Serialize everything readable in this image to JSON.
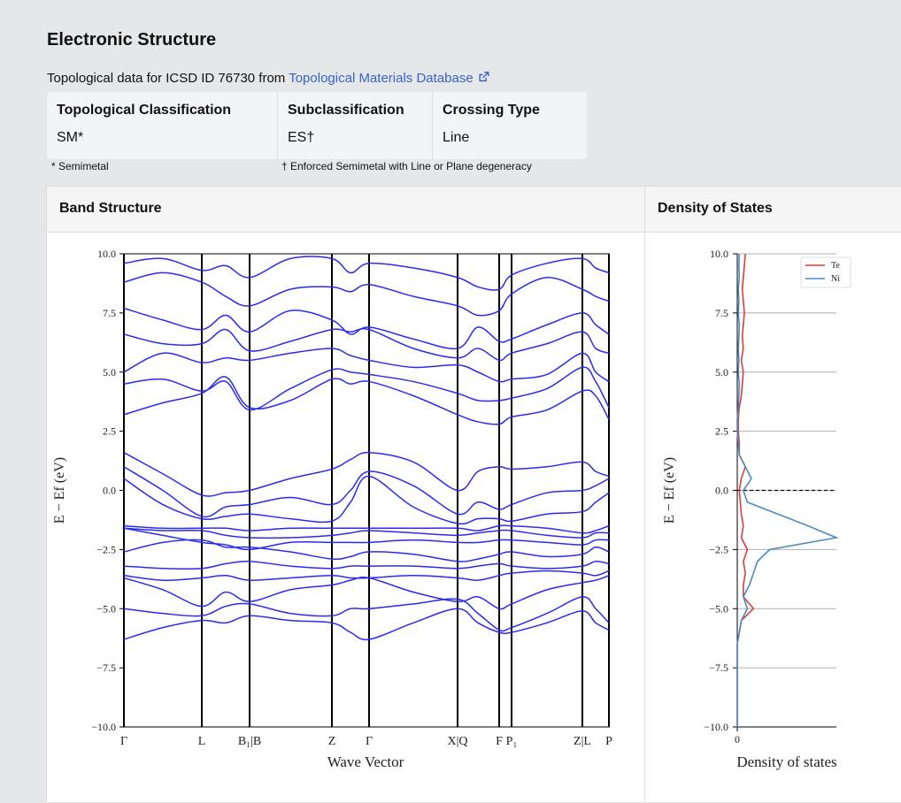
{
  "header": {
    "title": "Electronic Structure",
    "source_text": "Topological data for ICSD ID 76730 from",
    "source_link": "Topological Materials Database"
  },
  "table": {
    "headers": [
      "Topological Classification",
      "Subclassification",
      "Crossing Type"
    ],
    "values": [
      "SM*",
      "ES†",
      "Line"
    ]
  },
  "footnotes": [
    "* Semimetal",
    "† Enforced Semimetal with Line or Plane degeneracy"
  ],
  "panels": [
    "Band Structure",
    "Density of States"
  ],
  "chart_data": [
    {
      "type": "line",
      "xlabel": "Wave Vector",
      "ylabel": "E − Ef (eV)",
      "color": "#2a2af0",
      "x": [
        0,
        0.44,
        0.88,
        1.15,
        1.42,
        1.88,
        2.35,
        2.56,
        2.77,
        3.27,
        3.77,
        4.0,
        4.24,
        4.38,
        4.78,
        5.18,
        5.33,
        5.48
      ],
      "xlim": [
        0,
        5.48
      ],
      "xticks": [
        {
          "value": 0,
          "label": "Γ"
        },
        {
          "value": 0.88,
          "label": "L"
        },
        {
          "value": 1.42,
          "label": "B₁|B"
        },
        {
          "value": 2.35,
          "label": "Z"
        },
        {
          "value": 2.77,
          "label": "Γ"
        },
        {
          "value": 3.77,
          "label": "X|Q"
        },
        {
          "value": 4.24,
          "label": "F"
        },
        {
          "value": 4.38,
          "label": "P₁"
        },
        {
          "value": 5.18,
          "label": "Z|L"
        },
        {
          "value": 5.48,
          "label": "P"
        }
      ],
      "ylim": [
        -10,
        10
      ],
      "yticks": [
        {
          "value": 10,
          "label": "10.0"
        },
        {
          "value": 7.5,
          "label": "7.5"
        },
        {
          "value": 5,
          "label": "5.0"
        },
        {
          "value": 2.5,
          "label": "2.5"
        },
        {
          "value": 0,
          "label": "0.0"
        },
        {
          "value": -2.5,
          "label": "−2.5"
        },
        {
          "value": -5,
          "label": "−5.0"
        },
        {
          "value": -7.5,
          "label": "−7.5"
        },
        {
          "value": -10,
          "label": "−10.0"
        }
      ],
      "bands": [
        [
          -6.3,
          -5.8,
          -5.5,
          -5.6,
          -5.3,
          -5.5,
          -5.6,
          -6.0,
          -6.3,
          -5.6,
          -5.0,
          -5.6,
          -6.0,
          -6.0,
          -5.6,
          -5.1,
          -5.6,
          -5.9
        ],
        [
          -5.0,
          -5.2,
          -5.3,
          -4.9,
          -4.8,
          -5.2,
          -5.3,
          -5.0,
          -5.0,
          -4.8,
          -4.6,
          -5.2,
          -5.9,
          -5.8,
          -5.2,
          -4.5,
          -5.0,
          -5.6
        ],
        [
          -3.7,
          -4.2,
          -4.9,
          -4.3,
          -4.7,
          -4.2,
          -4.0,
          -3.8,
          -3.7,
          -4.3,
          -4.7,
          -4.5,
          -5.0,
          -4.8,
          -4.2,
          -3.9,
          -3.8,
          -3.6
        ],
        [
          -3.6,
          -3.8,
          -3.7,
          -3.6,
          -3.8,
          -3.7,
          -3.6,
          -3.7,
          -3.7,
          -3.6,
          -3.7,
          -3.8,
          -3.6,
          -3.5,
          -3.4,
          -3.5,
          -3.6,
          -3.4
        ],
        [
          -3.2,
          -3.3,
          -3.3,
          -3.1,
          -3.0,
          -3.2,
          -3.3,
          -3.2,
          -3.2,
          -3.2,
          -3.3,
          -3.2,
          -3.1,
          -3.2,
          -3.3,
          -3.2,
          -3.0,
          -3.1
        ],
        [
          -2.6,
          -2.2,
          -2.1,
          -2.4,
          -2.4,
          -2.6,
          -2.9,
          -2.8,
          -2.6,
          -2.7,
          -3.0,
          -2.9,
          -2.7,
          -2.6,
          -2.8,
          -2.7,
          -2.4,
          -2.6
        ],
        [
          -1.6,
          -1.9,
          -2.2,
          -2.3,
          -2.5,
          -2.2,
          -2.2,
          -2.2,
          -2.2,
          -2.1,
          -2.2,
          -2.2,
          -2.1,
          -2.1,
          -2.2,
          -2.3,
          -2.1,
          -2.1
        ],
        [
          -1.6,
          -1.7,
          -1.7,
          -1.9,
          -2.0,
          -2.0,
          -1.9,
          -1.8,
          -1.7,
          -1.8,
          -1.9,
          -1.8,
          -1.7,
          -1.7,
          -1.9,
          -2.0,
          -1.8,
          -1.8
        ],
        [
          -1.5,
          -1.6,
          -1.6,
          -1.6,
          -1.7,
          -1.6,
          -1.6,
          -1.6,
          -1.6,
          -1.6,
          -1.6,
          -1.7,
          -1.5,
          -1.5,
          -1.6,
          -1.8,
          -1.7,
          -1.5
        ],
        [
          0.5,
          -0.6,
          -1.2,
          -1.1,
          -1.0,
          -1.2,
          -1.3,
          -0.5,
          0.6,
          -0.7,
          -1.4,
          -1.2,
          -1.2,
          -1.3,
          -1.0,
          -0.9,
          -0.5,
          -0.1
        ],
        [
          1.0,
          0.0,
          -1.1,
          -0.7,
          -0.6,
          -0.3,
          -0.6,
          0.0,
          0.8,
          0.2,
          -1.0,
          -0.5,
          -0.8,
          -0.6,
          -0.1,
          0.0,
          0.2,
          0.5
        ],
        [
          1.6,
          0.7,
          -0.2,
          -0.1,
          0.0,
          0.5,
          0.9,
          1.3,
          1.6,
          1.2,
          0.0,
          0.8,
          1.0,
          0.9,
          1.0,
          1.2,
          0.8,
          0.6
        ],
        [
          3.2,
          3.7,
          4.1,
          4.8,
          3.5,
          3.8,
          4.7,
          4.5,
          4.6,
          4.0,
          3.2,
          2.9,
          2.8,
          3.1,
          3.4,
          4.2,
          4.0,
          3.0
        ],
        [
          4.5,
          4.7,
          4.2,
          4.6,
          3.4,
          4.3,
          5.1,
          5.0,
          4.9,
          4.6,
          4.1,
          3.8,
          3.8,
          3.9,
          4.3,
          5.2,
          4.6,
          3.5
        ],
        [
          5.0,
          5.8,
          5.4,
          5.6,
          5.5,
          5.8,
          6.0,
          5.7,
          5.5,
          5.2,
          5.3,
          5.0,
          4.6,
          4.7,
          4.9,
          5.8,
          5.0,
          4.6
        ],
        [
          6.6,
          6.2,
          6.2,
          6.8,
          5.9,
          6.3,
          6.8,
          6.7,
          6.8,
          6.0,
          5.6,
          6.0,
          5.5,
          5.8,
          6.2,
          6.7,
          6.0,
          5.8
        ],
        [
          7.7,
          7.2,
          6.8,
          7.4,
          6.7,
          7.6,
          7.2,
          6.6,
          6.9,
          6.4,
          6.0,
          6.9,
          6.3,
          6.4,
          7.0,
          7.5,
          7.0,
          6.6
        ],
        [
          8.8,
          9.2,
          8.8,
          8.2,
          7.8,
          8.5,
          8.6,
          8.4,
          8.7,
          8.2,
          7.8,
          7.4,
          7.6,
          8.3,
          9.0,
          8.5,
          8.2,
          8.0
        ],
        [
          9.6,
          9.8,
          9.3,
          9.5,
          9.0,
          9.8,
          9.8,
          9.2,
          9.6,
          9.4,
          9.0,
          8.6,
          8.5,
          9.1,
          9.6,
          9.8,
          9.4,
          9.2
        ]
      ]
    },
    {
      "type": "line",
      "orientation": "horizontal",
      "xlabel": "Density of states",
      "ylabel": "E − Ef (eV)",
      "xlim": [
        0,
        4.9
      ],
      "xticks": [
        0
      ],
      "ylim": [
        -10,
        10
      ],
      "yticks": [
        {
          "value": 10,
          "label": "10.0"
        },
        {
          "value": 7.5,
          "label": "7.5"
        },
        {
          "value": 5,
          "label": "5.0"
        },
        {
          "value": 2.5,
          "label": "2.5"
        },
        {
          "value": 0,
          "label": "0.0"
        },
        {
          "value": -2.5,
          "label": "−2.5"
        },
        {
          "value": -5,
          "label": "−5.0"
        },
        {
          "value": -7.5,
          "label": "−7.5"
        },
        {
          "value": -10,
          "label": "−10.0"
        }
      ],
      "grid": true,
      "fermi_level": 0,
      "legend": "upper right",
      "energies": [
        -10,
        -9.5,
        -9,
        -8.5,
        -8,
        -7.5,
        -7,
        -6.5,
        -6,
        -5.5,
        -5,
        -4.5,
        -4,
        -3.5,
        -3,
        -2.5,
        -2,
        -1.5,
        -1,
        -0.5,
        0,
        0.5,
        1,
        1.5,
        2,
        2.5,
        3,
        3.5,
        4,
        4.5,
        5,
        5.5,
        6,
        6.5,
        7,
        7.5,
        8,
        8.5,
        9,
        9.5,
        10
      ],
      "series": [
        {
          "name": "Te",
          "color": "#e03c3c",
          "values": [
            0,
            0,
            0,
            0,
            0,
            0,
            0,
            0,
            0.1,
            0.2,
            0.8,
            0.3,
            0.3,
            0.4,
            0.3,
            0.5,
            0.2,
            0.3,
            0.2,
            0.15,
            0.1,
            0.2,
            0.4,
            0.1,
            0.1,
            0.05,
            0.05,
            0.1,
            0.2,
            0.25,
            0.3,
            0.2,
            0.3,
            0.25,
            0.3,
            0.35,
            0.3,
            0.25,
            0.3,
            0.35,
            0.4
          ]
        },
        {
          "name": "Ni",
          "color": "#4a8bc6",
          "values": [
            0,
            0,
            0,
            0,
            0,
            0,
            0,
            0,
            0.1,
            0.2,
            0.5,
            0.3,
            0.6,
            0.8,
            1.0,
            1.6,
            4.9,
            3.5,
            2.0,
            0.5,
            0.3,
            0.7,
            0.4,
            0.1,
            0.05,
            0,
            0,
            0.05,
            0.08,
            0.1,
            0.05,
            0.08,
            0.05,
            0.08,
            0.1,
            0.05,
            0.08,
            0.05,
            0.1,
            0.08,
            0.1
          ]
        }
      ]
    }
  ]
}
